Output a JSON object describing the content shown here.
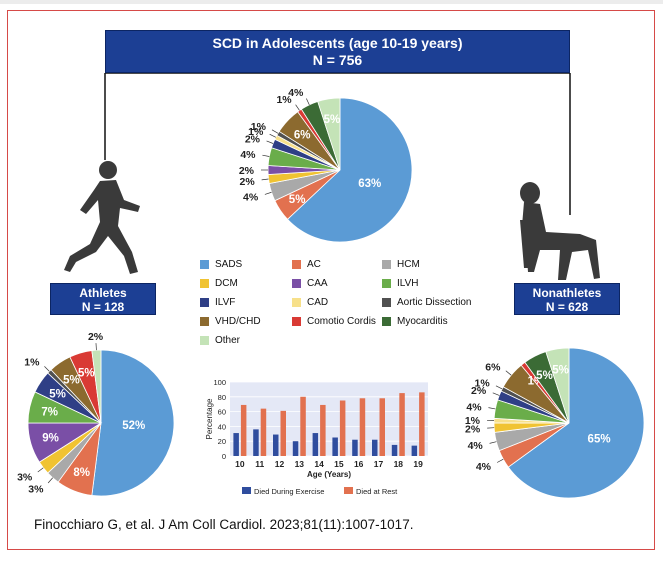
{
  "title": {
    "line1": "SCD in Adolescents (age 10-19 years)",
    "line2": "N = 756"
  },
  "athletes": {
    "label": "Athletes",
    "n": "N = 128"
  },
  "nonathletes": {
    "label": "Nonathletes",
    "n": "N = 628"
  },
  "legend": [
    {
      "label": "SADS",
      "color": "#5b9bd5"
    },
    {
      "label": "AC",
      "color": "#e2714f"
    },
    {
      "label": "HCM",
      "color": "#a9a9a9"
    },
    {
      "label": "DCM",
      "color": "#f0c332"
    },
    {
      "label": "CAA",
      "color": "#7a4fa6"
    },
    {
      "label": "ILVH",
      "color": "#6aad4a"
    },
    {
      "label": "ILVF",
      "color": "#2f3f86"
    },
    {
      "label": "CAD",
      "color": "#f7e08a"
    },
    {
      "label": "Aortic Dissection",
      "color": "#505050"
    },
    {
      "label": "VHD/CHD",
      "color": "#8c6a2f"
    },
    {
      "label": "Comotio Cordis",
      "color": "#d93a34"
    },
    {
      "label": "Myocarditis",
      "color": "#3b6b35"
    },
    {
      "label": "Other",
      "color": "#c4e3b7"
    }
  ],
  "citation": "Finocchiaro G, et al. J Am Coll Cardiol. 2023;81(11):1007-1017.",
  "chart_data": [
    {
      "type": "pie",
      "label": "SCD in Adolescents (age 10-19 years) N = 756",
      "slices": [
        {
          "label": "SADS",
          "value": 63,
          "text": "63%"
        },
        {
          "label": "AC",
          "value": 5,
          "text": "5%"
        },
        {
          "label": "HCM",
          "value": 4,
          "text": "4%"
        },
        {
          "label": "DCM",
          "value": 2,
          "text": "2%"
        },
        {
          "label": "CAA",
          "value": 2,
          "text": "2%"
        },
        {
          "label": "ILVH",
          "value": 4,
          "text": "4%"
        },
        {
          "label": "ILVF",
          "value": 2,
          "text": "2%"
        },
        {
          "label": "CAD",
          "value": 1,
          "text": "1%"
        },
        {
          "label": "Aortic Dissection",
          "value": 1,
          "text": "1%"
        },
        {
          "label": "VHD/CHD",
          "value": 6,
          "text": "6%"
        },
        {
          "label": "Comotio Cordis",
          "value": 1,
          "text": "1%"
        },
        {
          "label": "Myocarditis",
          "value": 4,
          "text": "4%"
        },
        {
          "label": "Other",
          "value": 5,
          "text": "5%"
        }
      ]
    },
    {
      "type": "pie",
      "label": "Athletes N = 128",
      "slices": [
        {
          "label": "SADS",
          "value": 52,
          "text": "52%"
        },
        {
          "label": "AC",
          "value": 8,
          "text": "8%"
        },
        {
          "label": "HCM",
          "value": 3,
          "text": "3%"
        },
        {
          "label": "DCM",
          "value": 3,
          "text": "3%"
        },
        {
          "label": "CAA",
          "value": 9,
          "text": "9%"
        },
        {
          "label": "ILVH",
          "value": 7,
          "text": "7%"
        },
        {
          "label": "ILVF",
          "value": 5,
          "text": "5%"
        },
        {
          "label": "Aortic Dissection",
          "value": 1,
          "text": "1%"
        },
        {
          "label": "VHD/CHD",
          "value": 5,
          "text": "5%"
        },
        {
          "label": "Comotio Cordis",
          "value": 5,
          "text": "5%"
        },
        {
          "label": "Other",
          "value": 2,
          "text": "2%"
        }
      ]
    },
    {
      "type": "pie",
      "label": "Nonathletes N = 628",
      "slices": [
        {
          "label": "SADS",
          "value": 65,
          "text": "65%"
        },
        {
          "label": "AC",
          "value": 4,
          "text": "4%"
        },
        {
          "label": "HCM",
          "value": 4,
          "text": "4%"
        },
        {
          "label": "DCM",
          "value": 2,
          "text": "2%"
        },
        {
          "label": "CAD",
          "value": 1,
          "text": "1%"
        },
        {
          "label": "ILVH",
          "value": 4,
          "text": "4%"
        },
        {
          "label": "ILVF",
          "value": 2,
          "text": "2%"
        },
        {
          "label": "Aortic Dissection",
          "value": 1,
          "text": "1%"
        },
        {
          "label": "VHD/CHD",
          "value": 6,
          "text": "6%"
        },
        {
          "label": "Comotio Cordis",
          "value": 1,
          "text": "1%"
        },
        {
          "label": "Myocarditis",
          "value": 5,
          "text": "5%"
        },
        {
          "label": "Other",
          "value": 5,
          "text": "5%"
        }
      ]
    },
    {
      "type": "bar",
      "xlabel": "Age (Years)",
      "ylabel": "Percentage",
      "categories": [
        "10",
        "11",
        "12",
        "13",
        "14",
        "15",
        "16",
        "17",
        "18",
        "19"
      ],
      "ylim": [
        0,
        100
      ],
      "yticks": [
        0,
        20,
        40,
        60,
        80,
        100
      ],
      "series": [
        {
          "name": "Died During Exercise",
          "color": "#2f4d9e",
          "values": [
            31,
            36,
            29,
            20,
            31,
            25,
            22,
            22,
            15,
            14
          ]
        },
        {
          "name": "Died at Rest",
          "color": "#e2714f",
          "values": [
            69,
            64,
            61,
            80,
            69,
            75,
            78,
            78,
            85,
            86
          ]
        }
      ]
    }
  ]
}
